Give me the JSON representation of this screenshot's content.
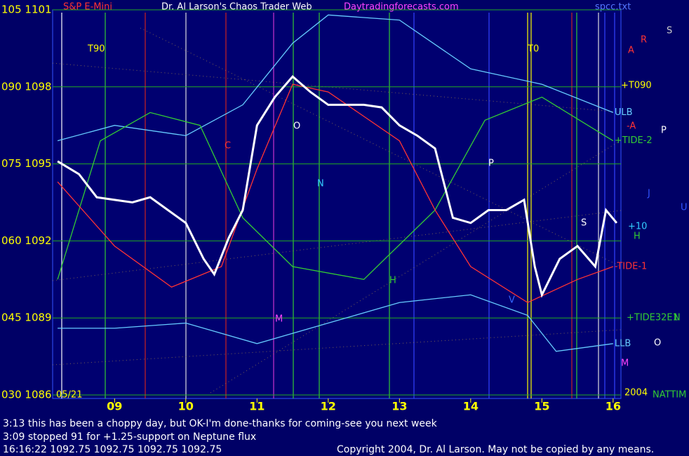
{
  "chart_data": {
    "type": "line",
    "title": "S&P E-Mini",
    "subtitle": "Dr. Al Larson's Chaos Trader Web",
    "site": "Daytradingforecasts.com",
    "file": "spcc.txt",
    "color": "#ffffff",
    "x": [
      8.2,
      8.5,
      8.75,
      9,
      9.25,
      9.5,
      9.75,
      10,
      10.25,
      10.4,
      10.6,
      10.8,
      11,
      11.25,
      11.5,
      11.75,
      12,
      12.25,
      12.5,
      12.75,
      13,
      13.25,
      13.5,
      13.75,
      14,
      14.25,
      14.5,
      14.75,
      14.9,
      15,
      15.25,
      15.5,
      15.75,
      15.9,
      16.05
    ],
    "values": [
      1095.1,
      1094.6,
      1093.7,
      1093.6,
      1093.5,
      1093.7,
      1093.2,
      1092.7,
      1091.3,
      1090.7,
      1092.1,
      1093.2,
      1096.5,
      1097.6,
      1098.4,
      1097.8,
      1097.3,
      1097.3,
      1097.3,
      1097.2,
      1096.5,
      1096.1,
      1095.6,
      1092.9,
      1092.7,
      1093.2,
      1093.2,
      1093.6,
      1091.0,
      1089.9,
      1091.3,
      1091.8,
      1091.0,
      1093.2,
      1092.7
    ],
    "series": [
      {
        "name": "ULB",
        "color": "#66ccff",
        "x": [
          8.2,
          9,
          10,
          10.8,
          11.5,
          12,
          13,
          14,
          15,
          16
        ],
        "values": [
          1095.9,
          1096.5,
          1096.1,
          1097.3,
          1099.7,
          1100.8,
          1100.6,
          1098.7,
          1098.1,
          1097.0
        ]
      },
      {
        "name": "LLB",
        "color": "#66ccff",
        "x": [
          8.2,
          9,
          10,
          11,
          12,
          13,
          14,
          14.8,
          15.2,
          16
        ],
        "values": [
          1088.6,
          1088.6,
          1088.8,
          1088.0,
          1088.8,
          1089.6,
          1089.9,
          1089.1,
          1087.7,
          1088.0
        ]
      },
      {
        "name": "+TIDE-2",
        "color": "#33cc33",
        "x": [
          8.2,
          8.8,
          9.5,
          10.2,
          10.8,
          11.5,
          12.5,
          13.5,
          14.2,
          15,
          16
        ],
        "values": [
          1090.5,
          1095.9,
          1097.0,
          1096.5,
          1092.9,
          1091.0,
          1090.5,
          1093.2,
          1096.7,
          1097.6,
          1095.9
        ]
      },
      {
        "name": "-TIDE-1",
        "color": "#ff3333",
        "x": [
          8.2,
          9,
          9.8,
          10.5,
          11,
          11.5,
          12,
          13,
          13.5,
          14,
          14.8,
          15.5,
          16
        ],
        "values": [
          1094.3,
          1091.8,
          1090.2,
          1091.0,
          1094.8,
          1098.1,
          1097.8,
          1095.9,
          1093.2,
          1091.0,
          1089.6,
          1090.5,
          1091.0
        ]
      }
    ],
    "xlim": [
      8.13,
      16.11
    ],
    "xticks": [
      {
        "value": 9,
        "label": "09"
      },
      10,
      11,
      12,
      13,
      14,
      15,
      16
    ],
    "ylim": [
      1086,
      1101
    ],
    "yticks": [
      {
        "value": 1086,
        "label": "030 1086"
      },
      {
        "value": 1089,
        "label": "045 1089"
      },
      {
        "value": 1092,
        "label": "060 1092"
      },
      {
        "value": 1095,
        "label": "075 1095"
      },
      {
        "value": 1098,
        "label": "090 1098"
      },
      {
        "value": 1101,
        "label": "105 1101"
      }
    ],
    "grid": true,
    "annotations": [
      "T90",
      "T0",
      "05/21",
      "C",
      "O",
      "N",
      "P",
      "H",
      "M",
      "V",
      "S",
      "R",
      "A",
      "S",
      "+T090",
      "-A",
      "P",
      "J",
      "U",
      "+10",
      "H",
      "+TIDE32E1",
      "N",
      "O",
      "M",
      "NATTIM",
      "2004"
    ],
    "notes": [
      "3:13 this has been a choppy day, but OK-I'm done-thanks for coming-see you next week",
      "3:09 stopped 91 for +1.25-support on Neptune flux"
    ],
    "readout": "16:16:22  1092.75 1092.75 1092.75 1092.75",
    "copyright": "Copyright 2004, Dr. Al Larson. May not be copied by any means."
  }
}
